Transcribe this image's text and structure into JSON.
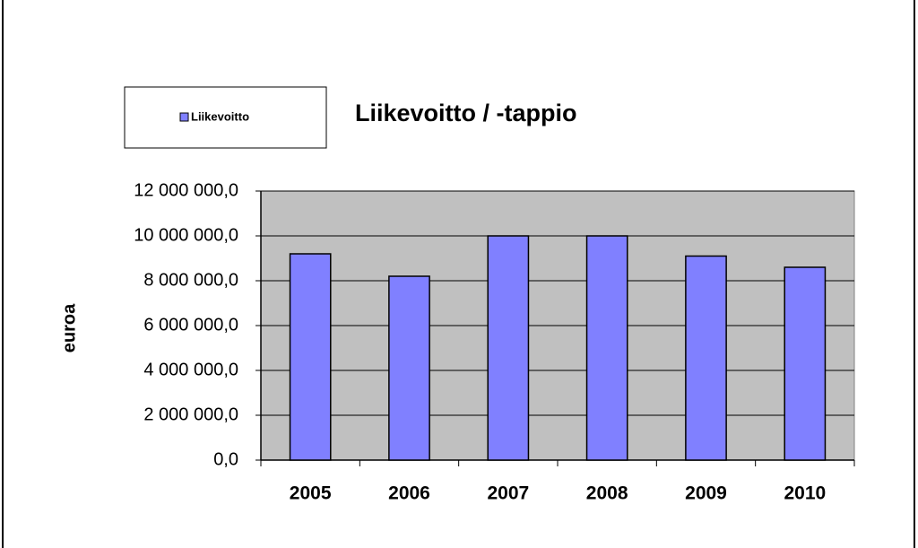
{
  "chart_data": {
    "type": "bar",
    "title": "Liikevoitto / -tappio",
    "y_label": "euroa",
    "categories": [
      "2005",
      "2006",
      "2007",
      "2008",
      "2009",
      "2010"
    ],
    "series": [
      {
        "name": "Liikevoitto",
        "color": "#8080ff",
        "values": [
          9200000,
          8200000,
          10000000,
          10000000,
          9100000,
          8600000
        ]
      }
    ],
    "ylim": [
      0,
      12000000
    ],
    "yticks": [
      {
        "value": 0,
        "label": "0,0"
      },
      {
        "value": 2000000,
        "label": "2 000 000,0"
      },
      {
        "value": 4000000,
        "label": "4 000 000,0"
      },
      {
        "value": 6000000,
        "label": "6 000 000,0"
      },
      {
        "value": 8000000,
        "label": "8 000 000,0"
      },
      {
        "value": 10000000,
        "label": "10 000 000,0"
      },
      {
        "value": 12000000,
        "label": "12 000 000,0"
      }
    ],
    "grid": true,
    "plot_background": "#c0c0c0",
    "legend": "top-left"
  }
}
